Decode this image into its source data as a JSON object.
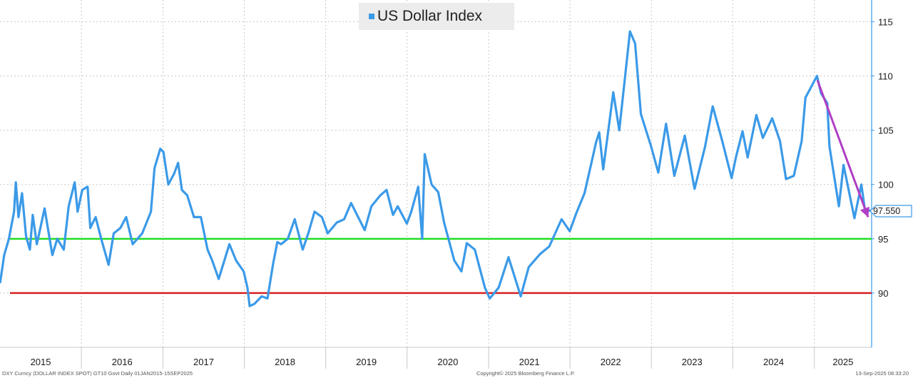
{
  "chart_data": {
    "type": "line",
    "title": "US Dollar Index",
    "series": [
      {
        "name": "US Dollar Index",
        "color": "#3b9ae8",
        "points": [
          [
            "2015-01-02",
            91.0
          ],
          [
            "2015-01-20",
            93.5
          ],
          [
            "2015-02-10",
            95.0
          ],
          [
            "2015-03-05",
            97.5
          ],
          [
            "2015-03-13",
            100.2
          ],
          [
            "2015-03-25",
            97.0
          ],
          [
            "2015-04-10",
            99.2
          ],
          [
            "2015-04-28",
            95.2
          ],
          [
            "2015-05-15",
            94.0
          ],
          [
            "2015-05-28",
            97.2
          ],
          [
            "2015-06-15",
            94.5
          ],
          [
            "2015-07-01",
            96.0
          ],
          [
            "2015-07-20",
            97.8
          ],
          [
            "2015-08-24",
            93.5
          ],
          [
            "2015-09-15",
            95.0
          ],
          [
            "2015-10-14",
            94.0
          ],
          [
            "2015-11-05",
            98.0
          ],
          [
            "2015-12-02",
            100.2
          ],
          [
            "2015-12-15",
            97.5
          ],
          [
            "2016-01-05",
            99.5
          ],
          [
            "2016-01-29",
            99.8
          ],
          [
            "2016-02-10",
            96.0
          ],
          [
            "2016-03-05",
            97.0
          ],
          [
            "2016-03-30",
            95.0
          ],
          [
            "2016-05-02",
            92.6
          ],
          [
            "2016-05-25",
            95.5
          ],
          [
            "2016-06-24",
            96.0
          ],
          [
            "2016-07-20",
            97.0
          ],
          [
            "2016-08-18",
            94.5
          ],
          [
            "2016-09-30",
            95.5
          ],
          [
            "2016-11-08",
            97.5
          ],
          [
            "2016-11-24",
            101.5
          ],
          [
            "2016-12-20",
            103.3
          ],
          [
            "2017-01-03",
            103.0
          ],
          [
            "2017-01-25",
            100.0
          ],
          [
            "2017-02-20",
            101.0
          ],
          [
            "2017-03-10",
            102.0
          ],
          [
            "2017-03-27",
            99.5
          ],
          [
            "2017-04-20",
            99.0
          ],
          [
            "2017-05-20",
            97.0
          ],
          [
            "2017-06-20",
            97.0
          ],
          [
            "2017-07-20",
            94.0
          ],
          [
            "2017-08-10",
            93.0
          ],
          [
            "2017-09-08",
            91.3
          ],
          [
            "2017-10-26",
            94.5
          ],
          [
            "2017-11-25",
            93.0
          ],
          [
            "2017-12-29",
            92.0
          ],
          [
            "2018-01-15",
            90.5
          ],
          [
            "2018-01-25",
            88.8
          ],
          [
            "2018-02-15",
            89.0
          ],
          [
            "2018-03-20",
            89.7
          ],
          [
            "2018-04-15",
            89.5
          ],
          [
            "2018-05-10",
            92.7
          ],
          [
            "2018-05-29",
            94.7
          ],
          [
            "2018-06-15",
            94.5
          ],
          [
            "2018-07-15",
            95.0
          ],
          [
            "2018-08-15",
            96.8
          ],
          [
            "2018-09-20",
            94.0
          ],
          [
            "2018-10-15",
            95.5
          ],
          [
            "2018-11-12",
            97.5
          ],
          [
            "2018-12-15",
            97.0
          ],
          [
            "2019-01-10",
            95.5
          ],
          [
            "2019-02-20",
            96.5
          ],
          [
            "2019-03-25",
            96.8
          ],
          [
            "2019-04-25",
            98.3
          ],
          [
            "2019-06-25",
            95.8
          ],
          [
            "2019-07-25",
            98.0
          ],
          [
            "2019-09-03",
            99.0
          ],
          [
            "2019-10-01",
            99.5
          ],
          [
            "2019-10-30",
            97.2
          ],
          [
            "2019-11-20",
            98.0
          ],
          [
            "2019-12-31",
            96.4
          ],
          [
            "2020-01-20",
            97.5
          ],
          [
            "2020-02-20",
            99.8
          ],
          [
            "2020-03-09",
            95.0
          ],
          [
            "2020-03-20",
            102.8
          ],
          [
            "2020-04-20",
            100.0
          ],
          [
            "2020-05-20",
            99.3
          ],
          [
            "2020-06-15",
            96.5
          ],
          [
            "2020-07-31",
            93.0
          ],
          [
            "2020-09-01",
            92.0
          ],
          [
            "2020-09-25",
            94.6
          ],
          [
            "2020-10-31",
            94.0
          ],
          [
            "2020-12-15",
            90.5
          ],
          [
            "2021-01-06",
            89.5
          ],
          [
            "2021-02-15",
            90.5
          ],
          [
            "2021-03-31",
            93.3
          ],
          [
            "2021-05-25",
            89.7
          ],
          [
            "2021-06-30",
            92.4
          ],
          [
            "2021-08-20",
            93.6
          ],
          [
            "2021-09-30",
            94.3
          ],
          [
            "2021-11-24",
            96.8
          ],
          [
            "2021-12-31",
            95.7
          ],
          [
            "2022-01-28",
            97.3
          ],
          [
            "2022-03-07",
            99.2
          ],
          [
            "2022-04-28",
            103.9
          ],
          [
            "2022-05-12",
            104.8
          ],
          [
            "2022-05-30",
            101.4
          ],
          [
            "2022-07-14",
            108.5
          ],
          [
            "2022-08-10",
            105.0
          ],
          [
            "2022-09-27",
            114.1
          ],
          [
            "2022-10-20",
            113.0
          ],
          [
            "2022-11-15",
            106.5
          ],
          [
            "2022-12-31",
            103.5
          ],
          [
            "2023-02-01",
            101.1
          ],
          [
            "2023-03-08",
            105.6
          ],
          [
            "2023-04-14",
            100.8
          ],
          [
            "2023-05-31",
            104.5
          ],
          [
            "2023-07-14",
            99.6
          ],
          [
            "2023-08-30",
            103.5
          ],
          [
            "2023-10-03",
            107.2
          ],
          [
            "2023-11-15",
            104.0
          ],
          [
            "2023-12-27",
            100.6
          ],
          [
            "2024-01-15",
            102.5
          ],
          [
            "2024-02-14",
            104.9
          ],
          [
            "2024-03-08",
            102.5
          ],
          [
            "2024-04-16",
            106.4
          ],
          [
            "2024-05-15",
            104.3
          ],
          [
            "2024-06-26",
            106.1
          ],
          [
            "2024-07-31",
            104.0
          ],
          [
            "2024-08-27",
            100.5
          ],
          [
            "2024-10-01",
            100.8
          ],
          [
            "2024-11-05",
            104.0
          ],
          [
            "2024-11-22",
            108.0
          ],
          [
            "2025-01-13",
            110.0
          ],
          [
            "2025-01-31",
            108.4
          ],
          [
            "2025-02-28",
            107.5
          ],
          [
            "2025-03-10",
            103.5
          ],
          [
            "2025-04-21",
            98.0
          ],
          [
            "2025-05-12",
            101.8
          ],
          [
            "2025-06-30",
            96.9
          ],
          [
            "2025-07-31",
            100.0
          ],
          [
            "2025-08-15",
            97.8
          ],
          [
            "2025-09-12",
            97.55
          ]
        ]
      }
    ],
    "x_range": [
      "2015-01-01",
      "2025-09-15"
    ],
    "ylim": [
      85,
      117
    ],
    "y_ticks": [
      90,
      95,
      100,
      105,
      110,
      115
    ],
    "x_tick_labels": [
      "2015",
      "2016",
      "2017",
      "2018",
      "2019",
      "2020",
      "2021",
      "2022",
      "2023",
      "2024",
      "2025"
    ],
    "last_value_label": "97.550",
    "reference_lines": [
      {
        "value": 95,
        "color": "#22dd22"
      },
      {
        "value": 90,
        "color": "#d42020"
      }
    ],
    "trend_arrow": {
      "color": "#b03fc4",
      "from": [
        "2025-01-15",
        109.6
      ],
      "to": [
        "2025-09-15",
        97.0
      ]
    },
    "grid": true,
    "legend_position": "top-center"
  },
  "footer": {
    "left": "DXY Curncy (DOLLAR INDEX SPOT) GT10 Govt Daily 01JAN2015-15SEP2025",
    "center": "Copyright© 2025 Bloomberg Finance L.P.",
    "right": "13-Sep-2025 08:33:20"
  }
}
